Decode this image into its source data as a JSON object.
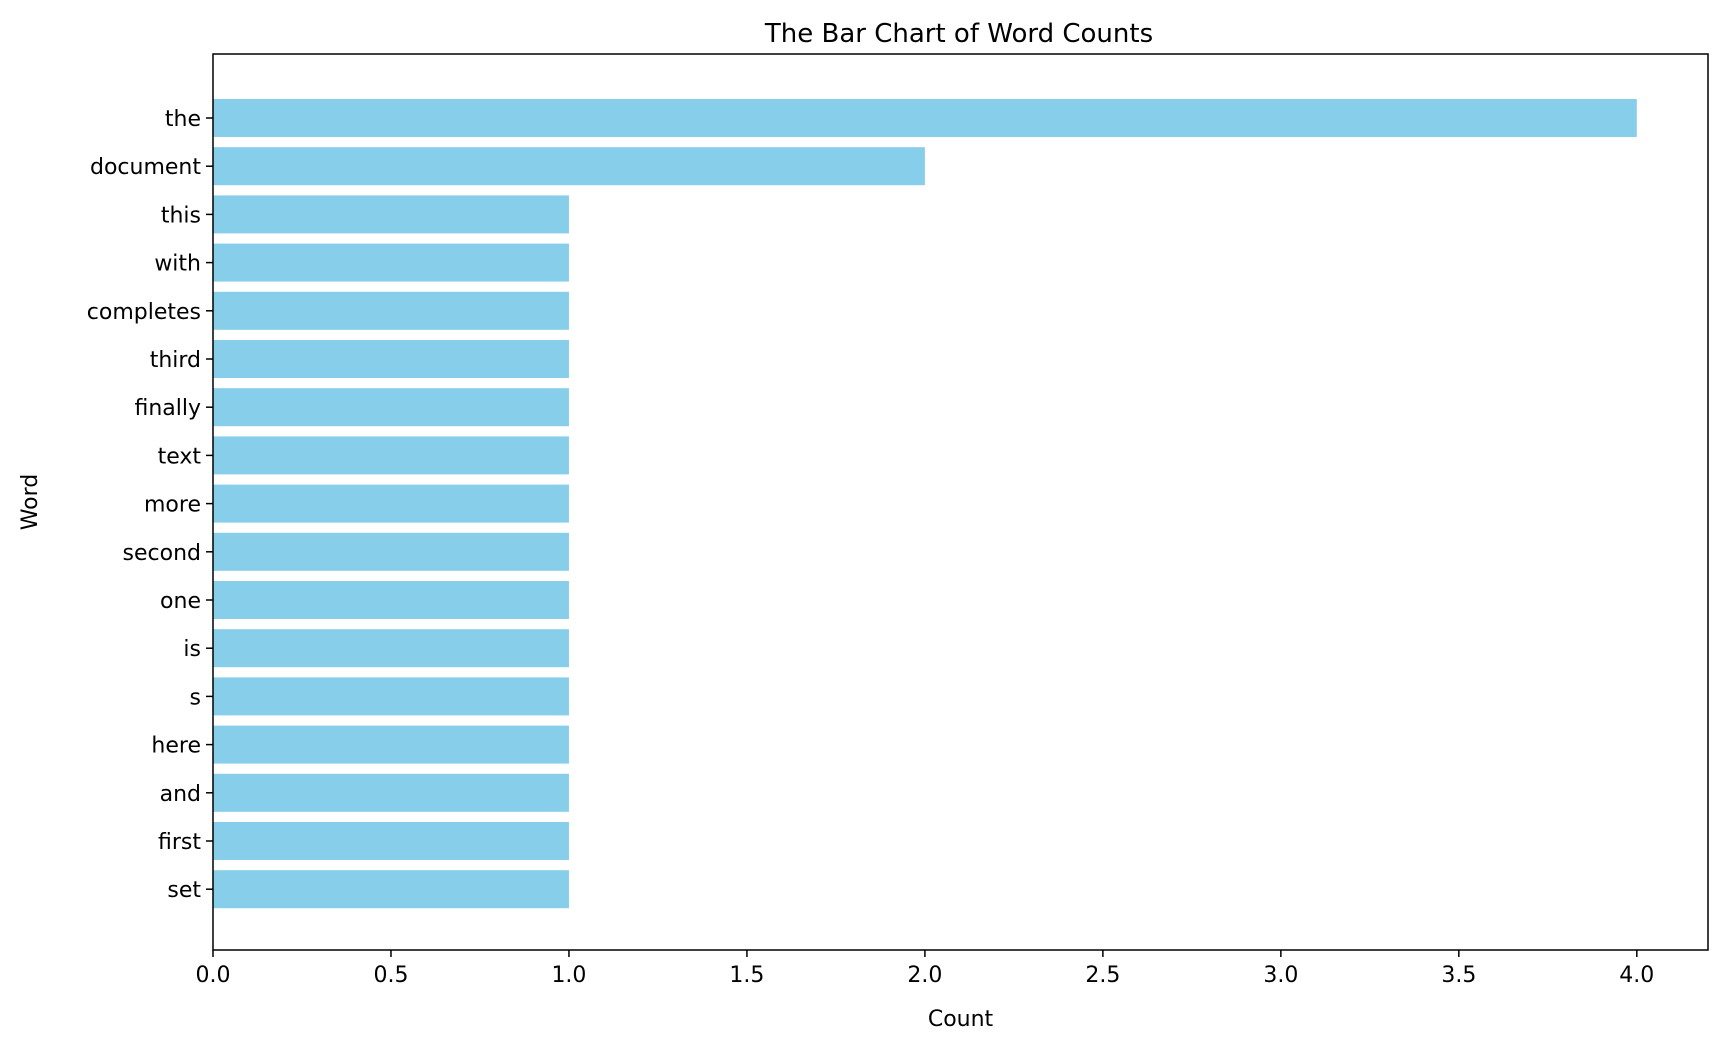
{
  "chart_data": {
    "type": "bar",
    "orientation": "horizontal",
    "title": "The Bar Chart of Word Counts",
    "xlabel": "Count",
    "ylabel": "Word",
    "categories": [
      "the",
      "document",
      "this",
      "with",
      "completes",
      "third",
      "finally",
      "text",
      "more",
      "second",
      "one",
      "is",
      "s",
      "here",
      "and",
      "first",
      "set"
    ],
    "values": [
      4,
      2,
      1,
      1,
      1,
      1,
      1,
      1,
      1,
      1,
      1,
      1,
      1,
      1,
      1,
      1,
      1
    ],
    "xlim": [
      0,
      4.2
    ],
    "xticks": [
      "0.0",
      "0.5",
      "1.0",
      "1.5",
      "2.0",
      "2.5",
      "3.0",
      "3.5",
      "4.0"
    ],
    "grid": false,
    "bar_color": "#87CEEB"
  }
}
